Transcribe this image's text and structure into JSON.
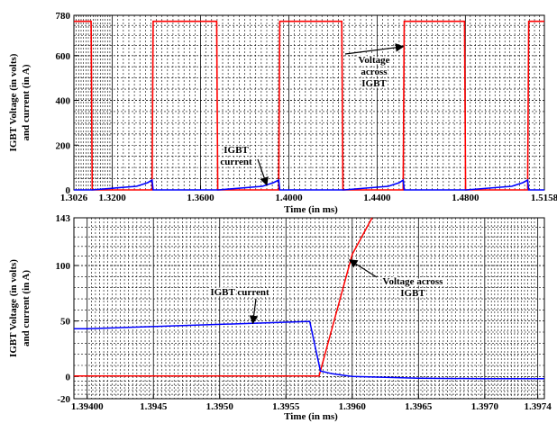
{
  "chart_data": [
    {
      "type": "line",
      "xlabel": "Time (in ms)",
      "ylabel": [
        "IGBT Voltage (in volts)",
        "and current (in A)"
      ],
      "xlim": [
        1.3026,
        1.5158
      ],
      "ylim": [
        0,
        780
      ],
      "xticks": [
        "1.3026",
        "1.3200",
        "1.3600",
        "1.4000",
        "1.4400",
        "1.4800",
        "1.5158"
      ],
      "yticks": [
        "0",
        "200",
        "400",
        "600",
        "780"
      ],
      "grid": true,
      "series": [
        {
          "color": "#ff0000",
          "x": [
            1.3026,
            1.3104,
            1.3109,
            1.338,
            1.3385,
            1.3673,
            1.3678,
            1.3954,
            1.3959,
            1.424,
            1.4245,
            1.4518,
            1.4523,
            1.4796,
            1.4801,
            1.5082,
            1.5087,
            1.5158
          ],
          "y": [
            753,
            753,
            0,
            0,
            753,
            753,
            0,
            0,
            753,
            753,
            0,
            0,
            753,
            753,
            0,
            0,
            753,
            753
          ]
        },
        {
          "color": "#0000ff",
          "x": [
            1.3026,
            1.3104,
            1.3108,
            1.331,
            1.336,
            1.338,
            1.3385,
            1.3678,
            1.3682,
            1.388,
            1.393,
            1.3954,
            1.3959,
            1.4245,
            1.4249,
            1.445,
            1.45,
            1.4518,
            1.4523,
            1.4801,
            1.4805,
            1.501,
            1.506,
            1.5082,
            1.5087,
            1.5158
          ],
          "y": [
            0,
            0,
            0,
            16,
            32,
            44,
            0,
            0,
            0,
            16,
            32,
            44,
            0,
            0,
            0,
            16,
            32,
            44,
            0,
            0,
            0,
            16,
            32,
            44,
            0,
            0
          ]
        }
      ],
      "annotations": [
        {
          "lines": [
            "Voltage",
            "across",
            "IGBT"
          ],
          "arrow_to": [
            1.4518,
            640
          ]
        },
        {
          "lines": [
            "IGBT",
            "current"
          ],
          "arrow_to": [
            1.39,
            22
          ]
        }
      ]
    },
    {
      "type": "line",
      "xlabel": "Time (in ms)",
      "ylabel": [
        "IGBT Voltage (in volts)",
        "and current (in A)"
      ],
      "xlim": [
        1.3939,
        1.39745
      ],
      "ylim": [
        -20,
        143
      ],
      "xticks": [
        "1.39400",
        "1.3945",
        "1.3950",
        "1.3955",
        "1.3960",
        "1.3965",
        "1.3970",
        "1.3974"
      ],
      "yticks": [
        "-20",
        "0",
        "50",
        "100",
        "143"
      ],
      "grid": true,
      "series": [
        {
          "color": "#ff0000",
          "x": [
            1.3939,
            1.39575,
            1.396,
            1.39615
          ],
          "y": [
            0.5,
            0.5,
            110,
            143
          ]
        },
        {
          "color": "#0000ff",
          "x": [
            1.3939,
            1.394,
            1.395,
            1.39565,
            1.39568,
            1.39576,
            1.39585,
            1.396,
            1.3965,
            1.397,
            1.39745
          ],
          "y": [
            43,
            43,
            47,
            49.5,
            49.5,
            5,
            2.5,
            0,
            -1.5,
            -2,
            -2
          ]
        }
      ],
      "annotations": [
        {
          "lines": [
            "IGBT current"
          ],
          "arrow_to": [
            1.39525,
            48
          ]
        },
        {
          "lines": [
            "Voltage across",
            "IGBT"
          ],
          "arrow_to": [
            1.39598,
            105
          ]
        }
      ]
    }
  ]
}
